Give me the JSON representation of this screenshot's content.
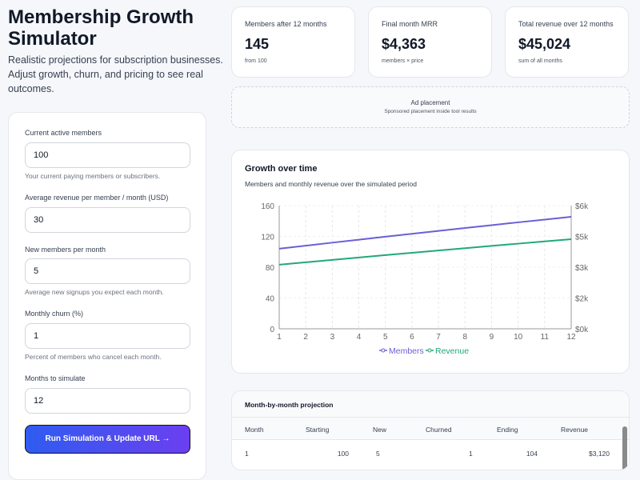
{
  "header": {
    "title": "Membership Growth Simulator",
    "intro": "Realistic projections for subscription businesses. Adjust growth, churn, and pricing to see real outcomes."
  },
  "form": {
    "members_label": "Current active members",
    "members_value": "100",
    "members_hint": "Your current paying members or subscribers.",
    "arpu_label": "Average revenue per member / month (USD)",
    "arpu_value": "30",
    "new_label": "New members per month",
    "new_value": "5",
    "new_hint": "Average new signups you expect each month.",
    "churn_label": "Monthly churn (%)",
    "churn_value": "1",
    "churn_hint": "Percent of members who cancel each month.",
    "months_label": "Months to simulate",
    "months_value": "12",
    "run_label": "Run Simulation & Update URL →"
  },
  "stats": [
    {
      "label": "Members after 12 months",
      "value": "145",
      "sub": "from 100"
    },
    {
      "label": "Final month MRR",
      "value": "$4,363",
      "sub": "members × price"
    },
    {
      "label": "Total revenue over 12 months",
      "value": "$45,024",
      "sub": "sum of all months"
    }
  ],
  "ad": {
    "title": "Ad placement",
    "sub": "Sponsored placement inside tool results"
  },
  "chart_data": {
    "type": "line",
    "title": "Growth over time",
    "subtitle": "Members and monthly revenue over the simulated period",
    "x": [
      1,
      2,
      3,
      4,
      5,
      6,
      7,
      8,
      9,
      10,
      11,
      12
    ],
    "series": [
      {
        "name": "Members",
        "axis": "left",
        "color": "#6a5fd6",
        "values": [
          104,
          107.96,
          111.88,
          115.76,
          119.6,
          123.41,
          127.17,
          130.9,
          134.59,
          138.25,
          141.86,
          145.44
        ]
      },
      {
        "name": "Revenue",
        "axis": "right",
        "color": "#22a87a",
        "values": [
          3120,
          3239,
          3356,
          3473,
          3588,
          3702,
          3815,
          3927,
          4038,
          4147,
          4256,
          4363
        ]
      }
    ],
    "ylim_left": [
      0,
      160
    ],
    "yticks_left": [
      "0",
      "40",
      "80",
      "120",
      "160"
    ],
    "ylim_right": [
      0,
      6000
    ],
    "yticks_right": [
      "$0k",
      "$2k",
      "$3k",
      "$5k",
      "$6k"
    ],
    "legend": "bottom",
    "grid": true
  },
  "table": {
    "title": "Month-by-month projection",
    "headers": [
      "Month",
      "Starting",
      "New",
      "Churned",
      "Ending",
      "Revenue"
    ],
    "rows": [
      [
        "1",
        "100",
        "5",
        "1",
        "104",
        "$3,120"
      ]
    ]
  }
}
